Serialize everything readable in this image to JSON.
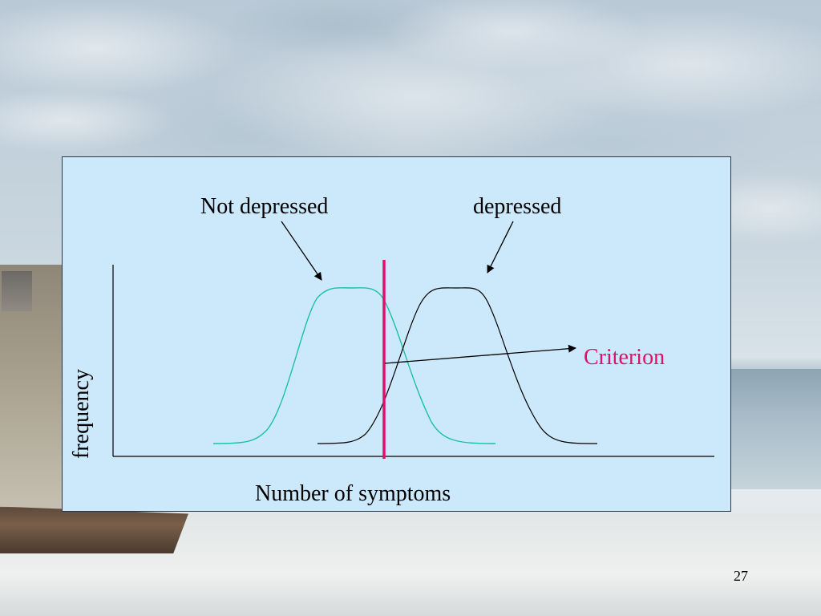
{
  "slide": {
    "page_number": "27"
  },
  "diagram": {
    "labels": {
      "not_depressed": "Not depressed",
      "depressed": "depressed",
      "criterion": "Criterion",
      "x_axis": "Number of symptoms",
      "y_axis": "frequency"
    },
    "colors": {
      "not_depressed_curve": "#19c2a0",
      "depressed_curve": "#000000",
      "criterion_line": "#e0106a",
      "criterion_label": "#e0106a",
      "panel_background": "#cce8fb"
    }
  }
}
